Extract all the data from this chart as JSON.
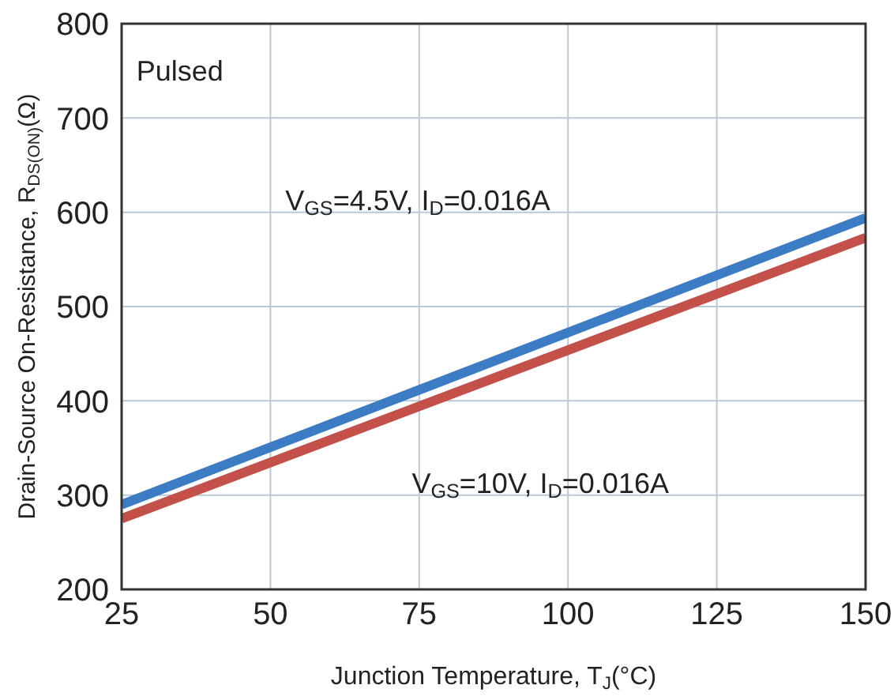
{
  "chart_data": {
    "type": "line",
    "xlabel": "Junction Temperature, T$_{J}$(°C)",
    "ylabel": "Drain-Source On-Resistance, R$_{DS(ON)}$(Ω)",
    "x": [
      25,
      150
    ],
    "series": [
      {
        "color": "#3b7cc4",
        "values": [
          290,
          594
        ]
      },
      {
        "color": "#c4504a",
        "values": [
          275,
          573
        ]
      }
    ],
    "xlim": [
      25,
      150
    ],
    "xticks": [
      25,
      50,
      75,
      100,
      125,
      150
    ],
    "ylim": [
      200,
      800
    ],
    "yticks": [
      200,
      300,
      400,
      500,
      600,
      700,
      800
    ],
    "grid": true,
    "legend": false,
    "marker": "none",
    "line_style": "solid",
    "annotations": [
      "Pulsed",
      "V$_{GS}$=4.5V, I$_{D}$=0.016A",
      "V$_{GS}$=10V, I$_{D}$=0.016A"
    ]
  }
}
